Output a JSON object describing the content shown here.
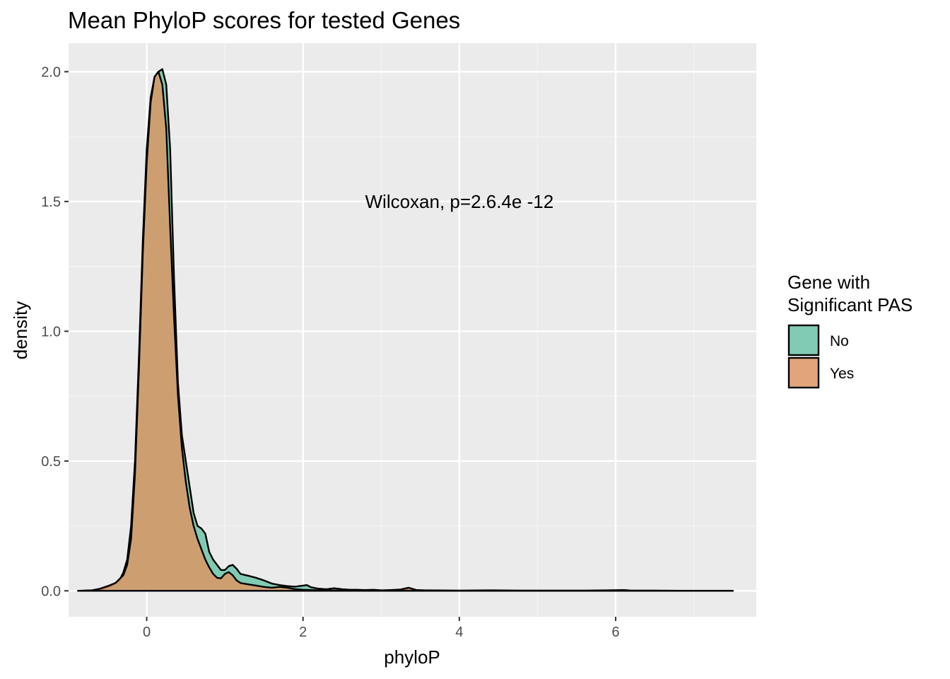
{
  "chart_data": {
    "type": "area",
    "subtype": "density",
    "title": "Mean PhyloP scores for tested Genes",
    "xlabel": "phyloP",
    "ylabel": "density",
    "xlim": [
      -1.0,
      7.8
    ],
    "ylim": [
      -0.1,
      2.11
    ],
    "x_ticks": [
      0,
      2,
      4,
      6
    ],
    "y_ticks": [
      0.0,
      0.5,
      1.0,
      1.5,
      2.0
    ],
    "x_tick_labels": [
      "0",
      "2",
      "4",
      "6"
    ],
    "y_tick_labels": [
      "0.0",
      "0.5",
      "1.0",
      "1.5",
      "2.0"
    ],
    "grid": true,
    "annotation": {
      "text": "Wilcoxan, p=2.6.4e -12",
      "x": 4.0,
      "y": 1.5
    },
    "legend": {
      "title_lines": [
        "Gene with",
        "Significant PAS"
      ],
      "position": "right",
      "entries": [
        "No",
        "Yes"
      ]
    },
    "series": [
      {
        "name": "No",
        "color": "#66c2a5",
        "points": [
          [
            -0.88,
            0
          ],
          [
            -0.6,
            0.002
          ],
          [
            -0.55,
            0.01
          ],
          [
            -0.45,
            0.02
          ],
          [
            -0.35,
            0.04
          ],
          [
            -0.3,
            0.07
          ],
          [
            -0.25,
            0.12
          ],
          [
            -0.2,
            0.25
          ],
          [
            -0.15,
            0.5
          ],
          [
            -0.1,
            0.9
          ],
          [
            -0.05,
            1.35
          ],
          [
            0.0,
            1.7
          ],
          [
            0.05,
            1.9
          ],
          [
            0.1,
            1.98
          ],
          [
            0.15,
            2.0
          ],
          [
            0.2,
            2.01
          ],
          [
            0.25,
            1.95
          ],
          [
            0.3,
            1.7
          ],
          [
            0.35,
            1.2
          ],
          [
            0.4,
            0.8
          ],
          [
            0.45,
            0.6
          ],
          [
            0.5,
            0.5
          ],
          [
            0.55,
            0.4
          ],
          [
            0.6,
            0.3
          ],
          [
            0.65,
            0.25
          ],
          [
            0.7,
            0.24
          ],
          [
            0.75,
            0.22
          ],
          [
            0.8,
            0.15
          ],
          [
            0.85,
            0.12
          ],
          [
            0.9,
            0.1
          ],
          [
            0.95,
            0.08
          ],
          [
            1.0,
            0.08
          ],
          [
            1.05,
            0.095
          ],
          [
            1.1,
            0.1
          ],
          [
            1.15,
            0.085
          ],
          [
            1.2,
            0.065
          ],
          [
            1.3,
            0.058
          ],
          [
            1.4,
            0.05
          ],
          [
            1.5,
            0.04
          ],
          [
            1.6,
            0.028
          ],
          [
            1.7,
            0.022
          ],
          [
            1.8,
            0.018
          ],
          [
            1.9,
            0.016
          ],
          [
            2.0,
            0.02
          ],
          [
            2.05,
            0.022
          ],
          [
            2.1,
            0.014
          ],
          [
            2.2,
            0.008
          ],
          [
            2.3,
            0.006
          ],
          [
            2.4,
            0.01
          ],
          [
            2.5,
            0.006
          ],
          [
            2.6,
            0.004
          ],
          [
            2.7,
            0.004
          ],
          [
            2.8,
            0.003
          ],
          [
            2.9,
            0.004
          ],
          [
            3.0,
            0.002
          ],
          [
            3.2,
            0.003
          ],
          [
            3.5,
            0.002
          ],
          [
            4.0,
            0.001
          ],
          [
            4.4,
            0.002
          ],
          [
            4.8,
            0.001
          ],
          [
            5.2,
            0.001
          ],
          [
            5.6,
            0.001
          ],
          [
            5.9,
            0.002
          ],
          [
            6.1,
            0.003
          ],
          [
            6.2,
            0.001
          ],
          [
            6.5,
            0.001
          ],
          [
            7.0,
            0.0
          ],
          [
            7.5,
            0.0
          ]
        ]
      },
      {
        "name": "Yes",
        "color": "#e0935f",
        "points": [
          [
            -0.88,
            0
          ],
          [
            -0.7,
            0.002
          ],
          [
            -0.6,
            0.008
          ],
          [
            -0.5,
            0.018
          ],
          [
            -0.4,
            0.03
          ],
          [
            -0.3,
            0.06
          ],
          [
            -0.25,
            0.1
          ],
          [
            -0.2,
            0.2
          ],
          [
            -0.15,
            0.45
          ],
          [
            -0.1,
            0.85
          ],
          [
            -0.05,
            1.3
          ],
          [
            0.0,
            1.65
          ],
          [
            0.05,
            1.88
          ],
          [
            0.1,
            1.98
          ],
          [
            0.15,
            2.0
          ],
          [
            0.2,
            1.95
          ],
          [
            0.25,
            1.78
          ],
          [
            0.3,
            1.4
          ],
          [
            0.35,
            1.05
          ],
          [
            0.4,
            0.75
          ],
          [
            0.45,
            0.55
          ],
          [
            0.5,
            0.42
          ],
          [
            0.55,
            0.32
          ],
          [
            0.6,
            0.25
          ],
          [
            0.65,
            0.2
          ],
          [
            0.7,
            0.16
          ],
          [
            0.75,
            0.12
          ],
          [
            0.8,
            0.09
          ],
          [
            0.85,
            0.065
          ],
          [
            0.9,
            0.05
          ],
          [
            0.95,
            0.048
          ],
          [
            1.0,
            0.065
          ],
          [
            1.05,
            0.072
          ],
          [
            1.1,
            0.06
          ],
          [
            1.15,
            0.04
          ],
          [
            1.2,
            0.03
          ],
          [
            1.3,
            0.025
          ],
          [
            1.4,
            0.02
          ],
          [
            1.5,
            0.015
          ],
          [
            1.6,
            0.012
          ],
          [
            1.7,
            0.015
          ],
          [
            1.8,
            0.012
          ],
          [
            1.9,
            0.006
          ],
          [
            2.0,
            0.004
          ],
          [
            2.2,
            0.002
          ],
          [
            2.5,
            0.001
          ],
          [
            3.0,
            0.001
          ],
          [
            3.25,
            0.005
          ],
          [
            3.35,
            0.012
          ],
          [
            3.45,
            0.003
          ],
          [
            3.6,
            0.001
          ],
          [
            4.0,
            0.0
          ],
          [
            5.0,
            0.0
          ],
          [
            6.0,
            0.0
          ],
          [
            7.0,
            0.0
          ],
          [
            7.5,
            0.0
          ]
        ]
      }
    ]
  }
}
